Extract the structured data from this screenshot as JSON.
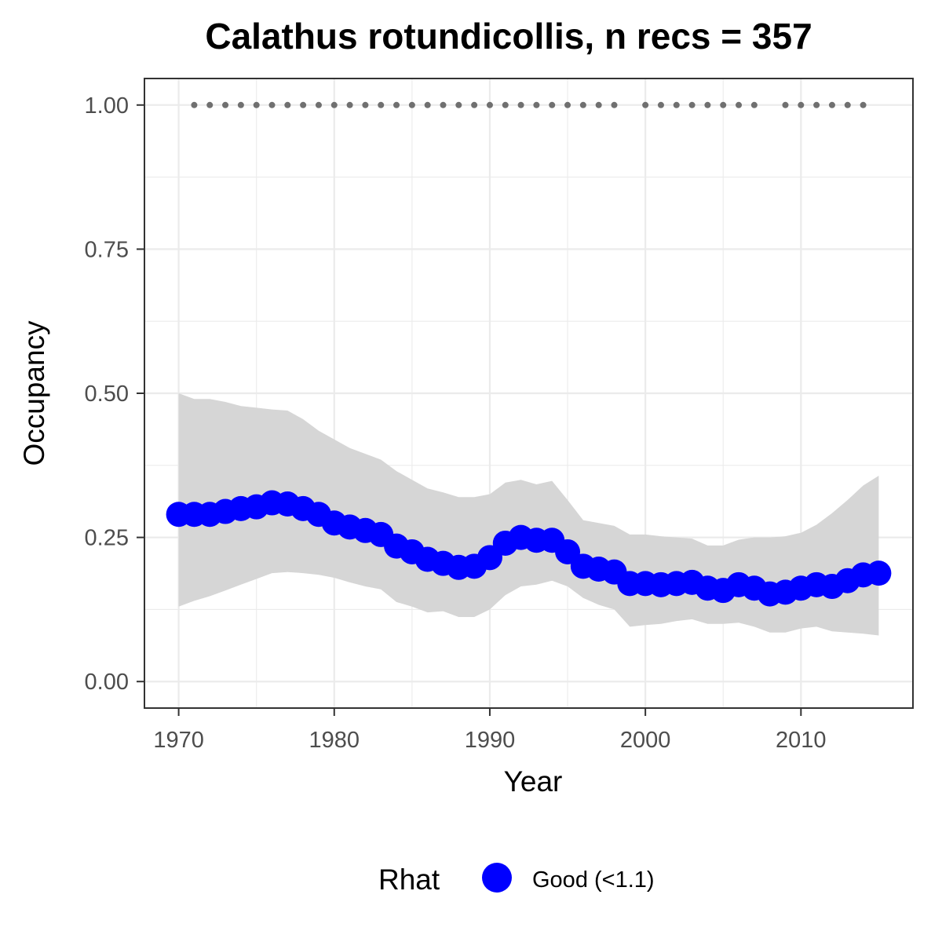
{
  "chart_data": {
    "type": "line",
    "title": "Calathus rotundicollis, n recs = 357",
    "xlabel": "Year",
    "ylabel": "Occupancy",
    "xlim": [
      1967.8,
      2017.2
    ],
    "ylim": [
      -0.046,
      1.046
    ],
    "x_ticks": [
      1970,
      1980,
      1990,
      2000,
      2010
    ],
    "x_tick_labels": [
      "1970",
      "1980",
      "1990",
      "2000",
      "2010"
    ],
    "y_ticks": [
      0,
      0.25,
      0.5,
      0.75,
      1.0
    ],
    "y_tick_labels": [
      "0.00",
      "0.25",
      "0.50",
      "0.75",
      "1.00"
    ],
    "grid": true,
    "x": [
      1970,
      1971,
      1972,
      1973,
      1974,
      1975,
      1976,
      1977,
      1978,
      1979,
      1980,
      1981,
      1982,
      1983,
      1984,
      1985,
      1986,
      1987,
      1988,
      1989,
      1990,
      1991,
      1992,
      1993,
      1994,
      1995,
      1996,
      1997,
      1998,
      1999,
      2000,
      2001,
      2002,
      2003,
      2004,
      2005,
      2006,
      2007,
      2008,
      2009,
      2010,
      2011,
      2012,
      2013,
      2014,
      2015
    ],
    "series": [
      {
        "name": "Good (<1.1)",
        "color": "#0000ff",
        "values": [
          0.29,
          0.29,
          0.29,
          0.295,
          0.3,
          0.303,
          0.31,
          0.308,
          0.3,
          0.29,
          0.275,
          0.268,
          0.262,
          0.255,
          0.235,
          0.225,
          0.212,
          0.205,
          0.198,
          0.2,
          0.215,
          0.24,
          0.25,
          0.245,
          0.245,
          0.225,
          0.2,
          0.195,
          0.19,
          0.17,
          0.17,
          0.168,
          0.17,
          0.172,
          0.162,
          0.158,
          0.168,
          0.162,
          0.152,
          0.155,
          0.162,
          0.168,
          0.165,
          0.175,
          0.185,
          0.188
        ]
      }
    ],
    "ci_upper": [
      0.5,
      0.49,
      0.49,
      0.485,
      0.478,
      0.475,
      0.472,
      0.47,
      0.455,
      0.435,
      0.42,
      0.405,
      0.395,
      0.385,
      0.365,
      0.35,
      0.335,
      0.328,
      0.32,
      0.32,
      0.325,
      0.345,
      0.35,
      0.342,
      0.348,
      0.315,
      0.28,
      0.275,
      0.27,
      0.255,
      0.255,
      0.252,
      0.25,
      0.248,
      0.236,
      0.236,
      0.246,
      0.25,
      0.25,
      0.252,
      0.258,
      0.272,
      0.292,
      0.315,
      0.34,
      0.357
    ],
    "ci_lower": [
      0.13,
      0.14,
      0.148,
      0.158,
      0.168,
      0.178,
      0.188,
      0.19,
      0.188,
      0.185,
      0.18,
      0.172,
      0.165,
      0.16,
      0.138,
      0.13,
      0.12,
      0.122,
      0.112,
      0.112,
      0.125,
      0.15,
      0.165,
      0.168,
      0.175,
      0.165,
      0.145,
      0.133,
      0.125,
      0.095,
      0.098,
      0.1,
      0.105,
      0.108,
      0.1,
      0.1,
      0.102,
      0.095,
      0.085,
      0.085,
      0.092,
      0.095,
      0.087,
      0.085,
      0.083,
      0.08
    ],
    "ci_color": "#d6d6d6",
    "record_years": [
      1971,
      1972,
      1973,
      1974,
      1975,
      1976,
      1977,
      1978,
      1979,
      1980,
      1981,
      1982,
      1983,
      1984,
      1985,
      1986,
      1987,
      1988,
      1989,
      1990,
      1991,
      1992,
      1993,
      1994,
      1995,
      1996,
      1997,
      1998,
      2000,
      2001,
      2002,
      2003,
      2004,
      2005,
      2006,
      2007,
      2009,
      2010,
      2011,
      2012,
      2013,
      2014
    ],
    "record_value": 1.0,
    "record_color": "#707070",
    "legend": {
      "title": "Rhat",
      "label": "Good (<1.1)",
      "color": "#0000ff",
      "placement": "bottom"
    }
  }
}
